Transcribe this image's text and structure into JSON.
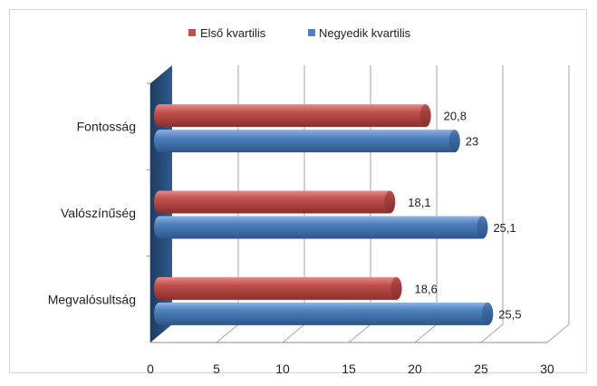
{
  "chart_data": {
    "type": "bar",
    "orientation": "horizontal",
    "style": "3d-cylinder",
    "categories": [
      "Fontosság",
      "Valószínűség",
      "Megvalósultság"
    ],
    "series": [
      {
        "name": "Első kvartilis",
        "values": [
          20.8,
          18.1,
          18.6
        ],
        "labels": [
          "20,8",
          "18,1",
          "18,6"
        ],
        "color": "#c0504d"
      },
      {
        "name": "Negyedik kvartilis",
        "values": [
          23,
          25.1,
          25.5
        ],
        "labels": [
          "23",
          "25,1",
          "25,5"
        ],
        "color": "#4f81bd"
      }
    ],
    "xlim": [
      0,
      30
    ],
    "xticks": [
      "0",
      "5",
      "10",
      "15",
      "20",
      "25",
      "30"
    ],
    "grid": true,
    "legend_position": "top",
    "title": "",
    "xlabel": "",
    "ylabel": ""
  }
}
